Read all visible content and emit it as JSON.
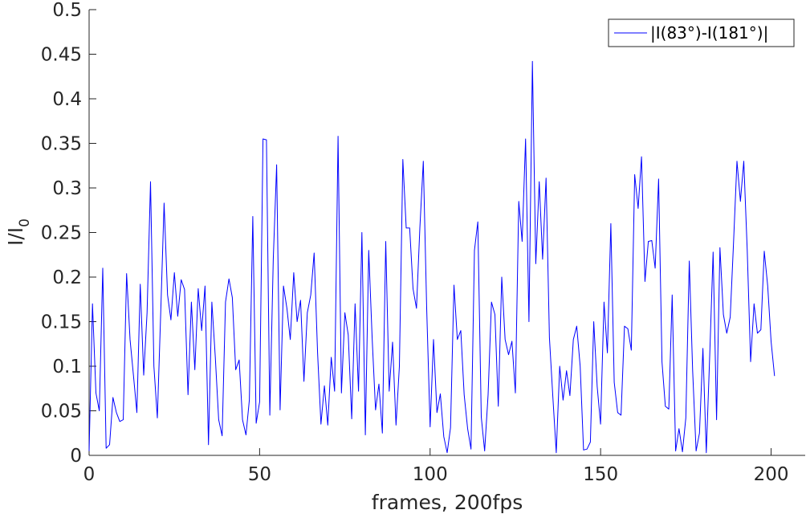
{
  "chart_data": {
    "type": "line",
    "xlabel": "frames, 200fps",
    "ylabel_main": "I/I",
    "ylabel_sub": "0",
    "xlim": [
      0,
      210
    ],
    "ylim": [
      0,
      0.5
    ],
    "xticks": [
      0,
      50,
      100,
      150,
      200
    ],
    "xtick_labels": [
      "0",
      "50",
      "100",
      "150",
      "200"
    ],
    "yticks": [
      0,
      0.05,
      0.1,
      0.15,
      0.2,
      0.25,
      0.3,
      0.35,
      0.4,
      0.45,
      0.5
    ],
    "ytick_labels": [
      "0",
      "0.05",
      "0.1",
      "0.15",
      "0.2",
      "0.25",
      "0.3",
      "0.35",
      "0.4",
      "0.45",
      "0.5"
    ],
    "grid": false,
    "legend_position": "top-right",
    "series": [
      {
        "name": "|I(83°)-I(181°)|",
        "color": "#0000ff",
        "x": [
          0,
          1,
          2,
          3,
          4,
          5,
          6,
          7,
          8,
          9,
          10,
          11,
          12,
          13,
          14,
          15,
          16,
          17,
          18,
          19,
          20,
          21,
          22,
          23,
          24,
          25,
          26,
          27,
          28,
          29,
          30,
          31,
          32,
          33,
          34,
          35,
          36,
          37,
          38,
          39,
          40,
          41,
          42,
          43,
          44,
          45,
          46,
          47,
          48,
          49,
          50,
          51,
          52,
          53,
          54,
          55,
          56,
          57,
          58,
          59,
          60,
          61,
          62,
          63,
          64,
          65,
          66,
          67,
          68,
          69,
          70,
          71,
          72,
          73,
          74,
          75,
          76,
          77,
          78,
          79,
          80,
          81,
          82,
          83,
          84,
          85,
          86,
          87,
          88,
          89,
          90,
          91,
          92,
          93,
          94,
          95,
          96,
          97,
          98,
          99,
          100,
          101,
          102,
          103,
          104,
          105,
          106,
          107,
          108,
          109,
          110,
          111,
          112,
          113,
          114,
          115,
          116,
          117,
          118,
          119,
          120,
          121,
          122,
          123,
          124,
          125,
          126,
          127,
          128,
          129,
          130,
          131,
          132,
          133,
          134,
          135,
          136,
          137,
          138,
          139,
          140,
          141,
          142,
          143,
          144,
          145,
          146,
          147,
          148,
          149,
          150,
          151,
          152,
          153,
          154,
          155,
          156,
          157,
          158,
          159,
          160,
          161,
          162,
          163,
          164,
          165,
          166,
          167,
          168,
          169,
          170,
          171,
          172,
          173,
          174,
          175,
          176,
          177,
          178,
          179,
          180,
          181,
          182,
          183,
          184,
          185,
          186,
          187,
          188,
          189,
          190,
          191,
          192,
          193,
          194,
          195,
          196,
          197,
          198,
          199,
          200,
          201
        ],
        "y": [
          0.005,
          0.17,
          0.07,
          0.05,
          0.21,
          0.008,
          0.012,
          0.065,
          0.048,
          0.038,
          0.04,
          0.204,
          0.13,
          0.09,
          0.048,
          0.192,
          0.09,
          0.16,
          0.307,
          0.1,
          0.042,
          0.16,
          0.283,
          0.18,
          0.152,
          0.205,
          0.156,
          0.197,
          0.186,
          0.068,
          0.172,
          0.096,
          0.187,
          0.14,
          0.19,
          0.012,
          0.172,
          0.11,
          0.04,
          0.022,
          0.172,
          0.198,
          0.177,
          0.096,
          0.107,
          0.04,
          0.023,
          0.062,
          0.268,
          0.036,
          0.06,
          0.355,
          0.354,
          0.045,
          0.22,
          0.326,
          0.051,
          0.19,
          0.165,
          0.13,
          0.205,
          0.15,
          0.174,
          0.083,
          0.16,
          0.18,
          0.227,
          0.115,
          0.035,
          0.078,
          0.034,
          0.11,
          0.072,
          0.358,
          0.07,
          0.16,
          0.135,
          0.041,
          0.17,
          0.072,
          0.25,
          0.023,
          0.23,
          0.131,
          0.051,
          0.08,
          0.025,
          0.24,
          0.072,
          0.127,
          0.034,
          0.1,
          0.332,
          0.255,
          0.255,
          0.187,
          0.165,
          0.255,
          0.33,
          0.165,
          0.032,
          0.13,
          0.048,
          0.069,
          0.021,
          0.003,
          0.031,
          0.191,
          0.13,
          0.14,
          0.068,
          0.03,
          0.007,
          0.23,
          0.262,
          0.043,
          0.005,
          0.068,
          0.172,
          0.158,
          0.055,
          0.2,
          0.13,
          0.113,
          0.128,
          0.07,
          0.285,
          0.24,
          0.355,
          0.15,
          0.442,
          0.215,
          0.307,
          0.22,
          0.311,
          0.132,
          0.065,
          0.003,
          0.1,
          0.062,
          0.095,
          0.067,
          0.13,
          0.145,
          0.1,
          0.006,
          0.007,
          0.015,
          0.15,
          0.077,
          0.035,
          0.172,
          0.115,
          0.26,
          0.082,
          0.048,
          0.045,
          0.145,
          0.142,
          0.118,
          0.315,
          0.277,
          0.335,
          0.195,
          0.24,
          0.241,
          0.21,
          0.31,
          0.105,
          0.055,
          0.052,
          0.18,
          0.005,
          0.03,
          0.004,
          0.042,
          0.218,
          0.095,
          0.005,
          0.025,
          0.12,
          0.003,
          0.113,
          0.228,
          0.04,
          0.233,
          0.158,
          0.137,
          0.155,
          0.24,
          0.33,
          0.285,
          0.33,
          0.23,
          0.105,
          0.17,
          0.137,
          0.141,
          0.229,
          0.19,
          0.128,
          0.089
        ]
      }
    ]
  }
}
